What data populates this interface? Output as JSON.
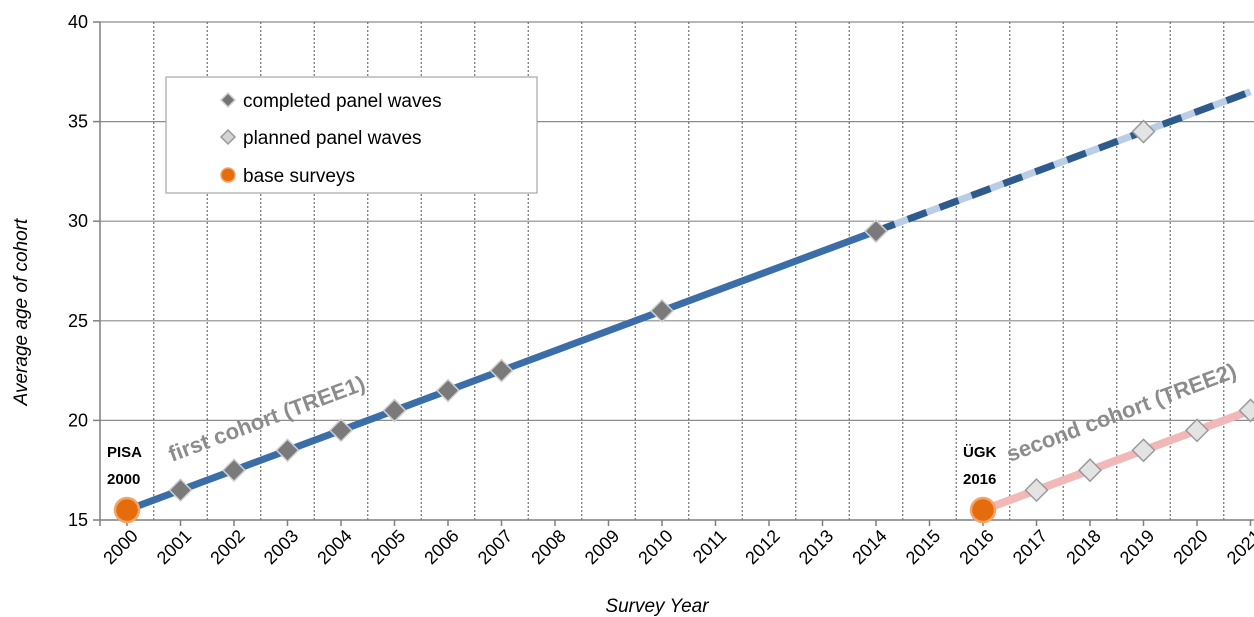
{
  "chart_data": {
    "type": "line",
    "xlabel": "Survey Year",
    "ylabel": "Average age of cohort",
    "ylim": [
      15,
      40
    ],
    "yticks": [
      15,
      20,
      25,
      30,
      35,
      40
    ],
    "xticks": [
      "2000",
      "2001",
      "2002",
      "2003",
      "2004",
      "2005",
      "2006",
      "2007",
      "2008",
      "2009",
      "2010",
      "2011",
      "2012",
      "2013",
      "2014",
      "2015",
      "2016",
      "2017",
      "2018",
      "2019",
      "2020",
      "2021"
    ],
    "grid": "vertical dotted, horizontal solid",
    "legend_position": "top-left",
    "legend": [
      {
        "label": "completed panel waves",
        "marker": "diamond",
        "color": "#737373"
      },
      {
        "label": "planned panel waves",
        "marker": "diamond",
        "color": "#d4d4d4"
      },
      {
        "label": "base surveys",
        "marker": "circle",
        "color": "#e46c0a"
      }
    ],
    "series": [
      {
        "name": "first cohort (TREE1)",
        "color": "#3b6ea8",
        "projection_color": "#2e5b8c",
        "points": [
          {
            "x": 2000,
            "y": 15.5,
            "kind": "base"
          },
          {
            "x": 2001,
            "y": 16.5,
            "kind": "completed"
          },
          {
            "x": 2002,
            "y": 17.5,
            "kind": "completed"
          },
          {
            "x": 2003,
            "y": 18.5,
            "kind": "completed"
          },
          {
            "x": 2004,
            "y": 19.5,
            "kind": "completed"
          },
          {
            "x": 2005,
            "y": 20.5,
            "kind": "completed"
          },
          {
            "x": 2006,
            "y": 21.5,
            "kind": "completed"
          },
          {
            "x": 2007,
            "y": 22.5,
            "kind": "completed"
          },
          {
            "x": 2010,
            "y": 25.5,
            "kind": "completed"
          },
          {
            "x": 2014,
            "y": 29.5,
            "kind": "completed"
          },
          {
            "x": 2019,
            "y": 34.5,
            "kind": "planned"
          }
        ],
        "projection_end": {
          "x": 2021,
          "y": 36.5
        }
      },
      {
        "name": "second cohort (TREE2)",
        "color": "#f2b8b8",
        "points": [
          {
            "x": 2016,
            "y": 15.5,
            "kind": "base"
          },
          {
            "x": 2017,
            "y": 16.5,
            "kind": "planned"
          },
          {
            "x": 2018,
            "y": 17.5,
            "kind": "planned"
          },
          {
            "x": 2019,
            "y": 18.5,
            "kind": "planned"
          },
          {
            "x": 2020,
            "y": 19.5,
            "kind": "planned"
          },
          {
            "x": 2021,
            "y": 20.5,
            "kind": "planned"
          }
        ]
      }
    ],
    "annotations": [
      {
        "text": "PISA",
        "anchor_year": 2000
      },
      {
        "text": "2000",
        "anchor_year": 2000
      },
      {
        "text": "ÜGK",
        "anchor_year": 2016
      },
      {
        "text": "2016",
        "anchor_year": 2016
      }
    ]
  }
}
